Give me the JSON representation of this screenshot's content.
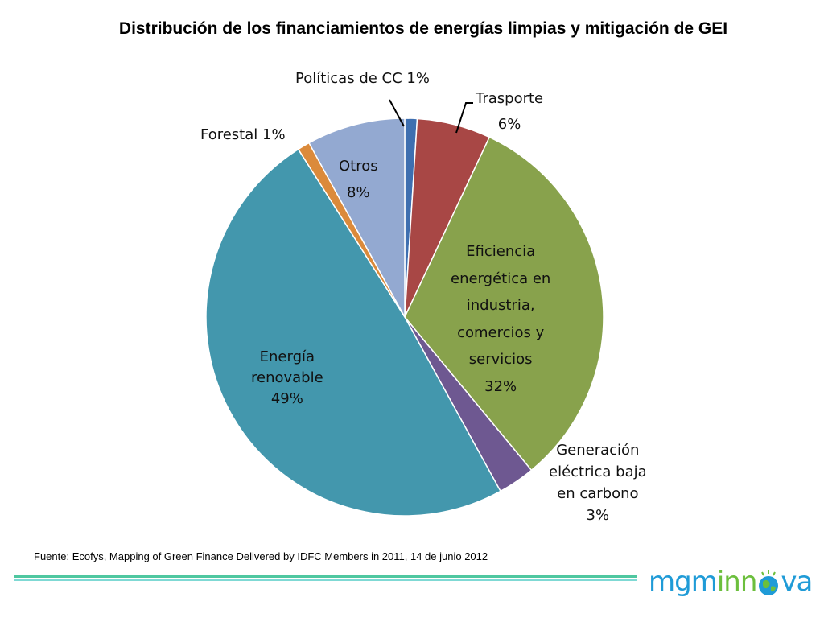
{
  "title": "Distribución de los financiamientos de energías limpias y mitigación de GEI",
  "source": "Fuente: Ecofys, Mapping of Green Finance Delivered by IDFC Members in 2011, 14 de junio 2012",
  "logo": {
    "part1": "mgm",
    "part2": "inn",
    "part3": "va"
  },
  "chart_data": {
    "type": "pie",
    "title": "Distribución de los financiamientos de energías limpias y mitigación de GEI",
    "slices": [
      {
        "key": "politicas",
        "value": 1,
        "color": "#3e6fb0",
        "label_lines": [
          "Políticas de CC 1%"
        ]
      },
      {
        "key": "trasporte",
        "value": 6,
        "color": "#a84745",
        "label_lines": [
          "Trasporte",
          "6%"
        ]
      },
      {
        "key": "eficiencia",
        "value": 32,
        "color": "#88a24c",
        "label_lines": [
          "Eficiencia",
          "energética en",
          "industria,",
          "comercios y",
          "servicios",
          "32%"
        ]
      },
      {
        "key": "generacion",
        "value": 3,
        "color": "#6e5891",
        "label_lines": [
          "Generación",
          "eléctrica baja",
          "en carbono",
          "3%"
        ]
      },
      {
        "key": "renovable",
        "value": 49,
        "color": "#4397ad",
        "label_lines": [
          "Energía",
          "renovable",
          "49%"
        ]
      },
      {
        "key": "forestal",
        "value": 1,
        "color": "#db8a3b",
        "label_lines": [
          "Forestal 1%"
        ]
      },
      {
        "key": "otros",
        "value": 8,
        "color": "#93a9d1",
        "label_lines": [
          "Otros",
          "8%"
        ]
      }
    ]
  }
}
